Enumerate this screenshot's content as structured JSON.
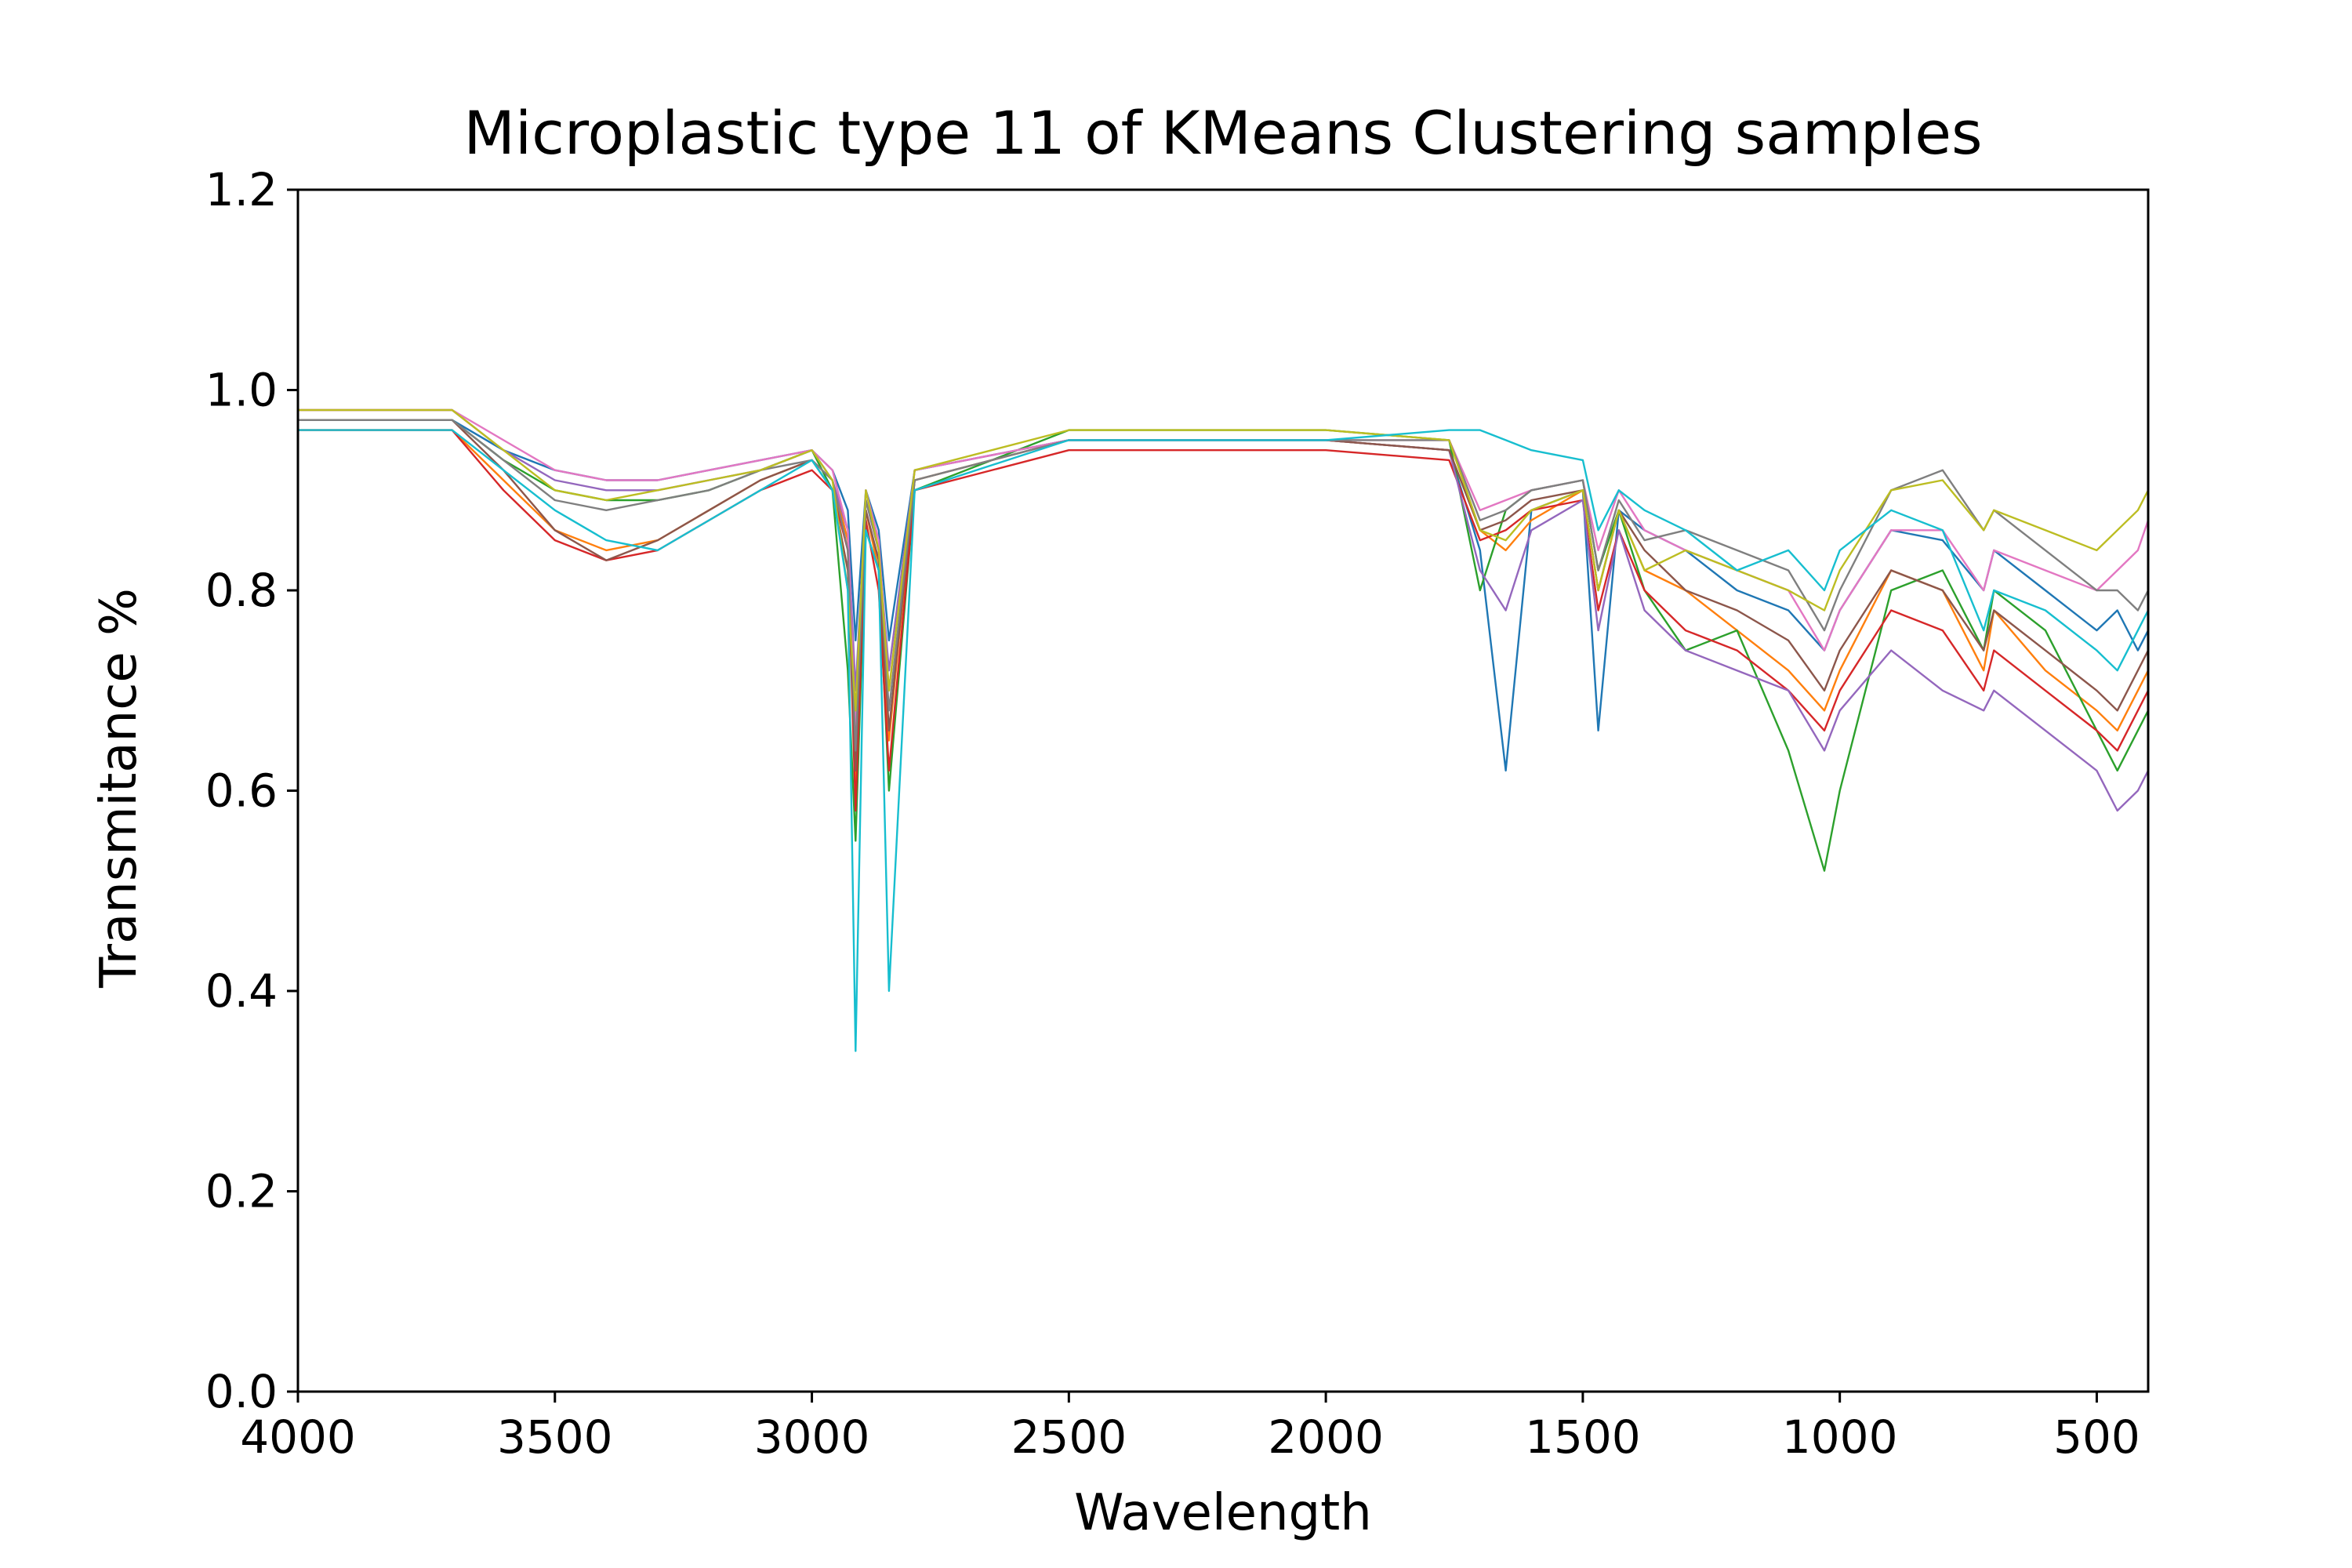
{
  "chart_data": {
    "type": "line",
    "title": "Microplastic type 11 of KMeans Clustering samples",
    "xlabel": "Wavelength",
    "ylabel": "Transmitance %",
    "xlim": [
      4000,
      400
    ],
    "ylim": [
      0.0,
      1.2
    ],
    "x_reversed": true,
    "grid": false,
    "legend": "none",
    "xticks": [
      4000,
      3500,
      3000,
      2500,
      2000,
      1500,
      1000,
      500
    ],
    "xtick_labels": [
      "4000",
      "3500",
      "3000",
      "2500",
      "2000",
      "1500",
      "1000",
      "500"
    ],
    "yticks": [
      0.0,
      0.2,
      0.4,
      0.6,
      0.8,
      1.0,
      1.2
    ],
    "ytick_labels": [
      "0.0",
      "0.2",
      "0.4",
      "0.6",
      "0.8",
      "1.0",
      "1.2"
    ],
    "colors": [
      "#1f77b4",
      "#ff7f0e",
      "#2ca02c",
      "#d62728",
      "#9467bd",
      "#8c564b",
      "#e377c2",
      "#7f7f7f",
      "#bcbd22",
      "#17becf"
    ],
    "series": [
      {
        "x": [
          4000,
          3700,
          3600,
          3500,
          3400,
          3300,
          3200,
          3100,
          3000,
          2960,
          2930,
          2915,
          2895,
          2870,
          2850,
          2800,
          2500,
          2000,
          1760,
          1700,
          1650,
          1600,
          1500,
          1470,
          1430,
          1380,
          1300,
          1200,
          1100,
          1030,
          1000,
          900,
          800,
          720,
          700,
          600,
          500,
          460,
          420,
          400
        ],
        "y": [
          0.97,
          0.97,
          0.94,
          0.92,
          0.91,
          0.91,
          0.92,
          0.93,
          0.94,
          0.92,
          0.88,
          0.75,
          0.9,
          0.86,
          0.75,
          0.92,
          0.95,
          0.95,
          0.94,
          0.84,
          0.62,
          0.88,
          0.9,
          0.66,
          0.88,
          0.86,
          0.84,
          0.8,
          0.78,
          0.74,
          0.78,
          0.86,
          0.85,
          0.8,
          0.84,
          0.8,
          0.76,
          0.78,
          0.74,
          0.76
        ]
      },
      {
        "x": [
          4000,
          3700,
          3600,
          3500,
          3400,
          3300,
          3200,
          3100,
          3000,
          2960,
          2930,
          2915,
          2895,
          2870,
          2850,
          2800,
          2500,
          2000,
          1760,
          1700,
          1650,
          1600,
          1500,
          1470,
          1430,
          1380,
          1300,
          1200,
          1100,
          1030,
          1000,
          900,
          800,
          720,
          700,
          600,
          500,
          460,
          420,
          400
        ],
        "y": [
          0.96,
          0.96,
          0.91,
          0.86,
          0.84,
          0.85,
          0.88,
          0.91,
          0.93,
          0.91,
          0.85,
          0.6,
          0.88,
          0.82,
          0.65,
          0.91,
          0.95,
          0.95,
          0.94,
          0.86,
          0.84,
          0.87,
          0.9,
          0.8,
          0.88,
          0.82,
          0.8,
          0.76,
          0.72,
          0.68,
          0.72,
          0.82,
          0.8,
          0.72,
          0.78,
          0.72,
          0.68,
          0.66,
          0.7,
          0.72
        ]
      },
      {
        "x": [
          4000,
          3700,
          3600,
          3500,
          3400,
          3300,
          3200,
          3100,
          3000,
          2960,
          2930,
          2915,
          2895,
          2870,
          2850,
          2800,
          2500,
          2000,
          1760,
          1700,
          1650,
          1600,
          1500,
          1470,
          1430,
          1380,
          1300,
          1200,
          1100,
          1030,
          1000,
          900,
          800,
          720,
          700,
          600,
          500,
          460,
          420,
          400
        ],
        "y": [
          0.97,
          0.97,
          0.93,
          0.9,
          0.89,
          0.89,
          0.9,
          0.92,
          0.94,
          0.9,
          0.72,
          0.55,
          0.86,
          0.82,
          0.6,
          0.9,
          0.96,
          0.96,
          0.95,
          0.8,
          0.88,
          0.9,
          0.91,
          0.82,
          0.88,
          0.8,
          0.74,
          0.76,
          0.64,
          0.52,
          0.6,
          0.8,
          0.82,
          0.74,
          0.8,
          0.76,
          0.66,
          0.62,
          0.66,
          0.68
        ]
      },
      {
        "x": [
          4000,
          3700,
          3600,
          3500,
          3400,
          3300,
          3200,
          3100,
          3000,
          2960,
          2930,
          2915,
          2895,
          2870,
          2850,
          2800,
          2500,
          2000,
          1760,
          1700,
          1650,
          1600,
          1500,
          1470,
          1430,
          1380,
          1300,
          1200,
          1100,
          1030,
          1000,
          900,
          800,
          720,
          700,
          600,
          500,
          460,
          420,
          400
        ],
        "y": [
          0.96,
          0.96,
          0.9,
          0.85,
          0.83,
          0.84,
          0.87,
          0.9,
          0.92,
          0.9,
          0.84,
          0.58,
          0.87,
          0.8,
          0.62,
          0.9,
          0.94,
          0.94,
          0.93,
          0.85,
          0.86,
          0.88,
          0.89,
          0.78,
          0.86,
          0.8,
          0.76,
          0.74,
          0.7,
          0.66,
          0.7,
          0.78,
          0.76,
          0.7,
          0.74,
          0.7,
          0.66,
          0.64,
          0.68,
          0.7
        ]
      },
      {
        "x": [
          4000,
          3700,
          3600,
          3500,
          3400,
          3300,
          3200,
          3100,
          3000,
          2960,
          2930,
          2915,
          2895,
          2870,
          2850,
          2800,
          2500,
          2000,
          1760,
          1700,
          1650,
          1600,
          1500,
          1470,
          1430,
          1380,
          1300,
          1200,
          1100,
          1030,
          1000,
          900,
          800,
          720,
          700,
          600,
          500,
          460,
          420,
          400
        ],
        "y": [
          0.98,
          0.98,
          0.94,
          0.91,
          0.9,
          0.9,
          0.91,
          0.92,
          0.94,
          0.91,
          0.86,
          0.7,
          0.89,
          0.84,
          0.72,
          0.92,
          0.95,
          0.95,
          0.94,
          0.82,
          0.78,
          0.86,
          0.89,
          0.76,
          0.86,
          0.78,
          0.74,
          0.72,
          0.7,
          0.64,
          0.68,
          0.74,
          0.7,
          0.68,
          0.7,
          0.66,
          0.62,
          0.58,
          0.6,
          0.62
        ]
      },
      {
        "x": [
          4000,
          3700,
          3600,
          3500,
          3400,
          3300,
          3200,
          3100,
          3000,
          2960,
          2930,
          2915,
          2895,
          2870,
          2850,
          2800,
          2500,
          2000,
          1760,
          1700,
          1650,
          1600,
          1500,
          1470,
          1430,
          1380,
          1300,
          1200,
          1100,
          1030,
          1000,
          900,
          800,
          720,
          700,
          600,
          500,
          460,
          420,
          400
        ],
        "y": [
          0.97,
          0.97,
          0.92,
          0.86,
          0.83,
          0.85,
          0.88,
          0.91,
          0.93,
          0.9,
          0.82,
          0.62,
          0.88,
          0.83,
          0.66,
          0.91,
          0.95,
          0.95,
          0.94,
          0.86,
          0.87,
          0.89,
          0.9,
          0.8,
          0.88,
          0.84,
          0.8,
          0.78,
          0.75,
          0.7,
          0.74,
          0.82,
          0.8,
          0.74,
          0.78,
          0.74,
          0.7,
          0.68,
          0.72,
          0.74
        ]
      },
      {
        "x": [
          4000,
          3700,
          3600,
          3500,
          3400,
          3300,
          3200,
          3100,
          3000,
          2960,
          2930,
          2915,
          2895,
          2870,
          2850,
          2800,
          2500,
          2000,
          1760,
          1700,
          1650,
          1600,
          1500,
          1470,
          1430,
          1380,
          1300,
          1200,
          1100,
          1030,
          1000,
          900,
          800,
          720,
          700,
          600,
          500,
          460,
          420,
          400
        ],
        "y": [
          0.98,
          0.98,
          0.95,
          0.92,
          0.91,
          0.91,
          0.92,
          0.93,
          0.94,
          0.92,
          0.86,
          0.66,
          0.9,
          0.85,
          0.7,
          0.92,
          0.95,
          0.95,
          0.95,
          0.88,
          0.89,
          0.9,
          0.91,
          0.84,
          0.9,
          0.86,
          0.84,
          0.82,
          0.8,
          0.74,
          0.78,
          0.86,
          0.86,
          0.8,
          0.84,
          0.82,
          0.8,
          0.82,
          0.84,
          0.87
        ]
      },
      {
        "x": [
          4000,
          3700,
          3600,
          3500,
          3400,
          3300,
          3200,
          3100,
          3000,
          2960,
          2930,
          2915,
          2895,
          2870,
          2850,
          2800,
          2500,
          2000,
          1760,
          1700,
          1650,
          1600,
          1500,
          1470,
          1430,
          1380,
          1300,
          1200,
          1100,
          1030,
          1000,
          900,
          800,
          720,
          700,
          600,
          500,
          460,
          420,
          400
        ],
        "y": [
          0.97,
          0.97,
          0.93,
          0.89,
          0.88,
          0.89,
          0.9,
          0.92,
          0.93,
          0.91,
          0.84,
          0.64,
          0.89,
          0.84,
          0.68,
          0.91,
          0.95,
          0.95,
          0.95,
          0.87,
          0.88,
          0.9,
          0.91,
          0.82,
          0.89,
          0.85,
          0.86,
          0.84,
          0.82,
          0.76,
          0.8,
          0.9,
          0.92,
          0.86,
          0.88,
          0.84,
          0.8,
          0.8,
          0.78,
          0.8
        ]
      },
      {
        "x": [
          4000,
          3700,
          3600,
          3500,
          3400,
          3300,
          3200,
          3100,
          3000,
          2960,
          2930,
          2915,
          2895,
          2870,
          2850,
          2800,
          2500,
          2000,
          1760,
          1700,
          1650,
          1600,
          1500,
          1470,
          1430,
          1380,
          1300,
          1200,
          1100,
          1030,
          1000,
          900,
          800,
          720,
          700,
          600,
          500,
          460,
          420,
          400
        ],
        "y": [
          0.98,
          0.98,
          0.94,
          0.9,
          0.89,
          0.9,
          0.91,
          0.92,
          0.94,
          0.91,
          0.8,
          0.68,
          0.9,
          0.84,
          0.7,
          0.92,
          0.96,
          0.96,
          0.95,
          0.86,
          0.85,
          0.88,
          0.9,
          0.8,
          0.88,
          0.82,
          0.84,
          0.82,
          0.8,
          0.78,
          0.82,
          0.9,
          0.91,
          0.86,
          0.88,
          0.86,
          0.84,
          0.86,
          0.88,
          0.9
        ]
      },
      {
        "x": [
          4000,
          3700,
          3600,
          3500,
          3400,
          3300,
          3200,
          3100,
          3000,
          2960,
          2930,
          2915,
          2895,
          2870,
          2850,
          2800,
          2500,
          2000,
          1760,
          1700,
          1650,
          1600,
          1500,
          1470,
          1430,
          1380,
          1300,
          1200,
          1100,
          1030,
          1000,
          900,
          800,
          720,
          700,
          600,
          500,
          460,
          420,
          400
        ],
        "y": [
          0.96,
          0.96,
          0.92,
          0.88,
          0.85,
          0.84,
          0.87,
          0.9,
          0.93,
          0.9,
          0.8,
          0.34,
          0.86,
          0.82,
          0.4,
          0.9,
          0.95,
          0.95,
          0.96,
          0.96,
          0.95,
          0.94,
          0.93,
          0.86,
          0.9,
          0.88,
          0.86,
          0.82,
          0.84,
          0.8,
          0.84,
          0.88,
          0.86,
          0.76,
          0.8,
          0.78,
          0.74,
          0.72,
          0.76,
          0.78
        ]
      }
    ]
  }
}
